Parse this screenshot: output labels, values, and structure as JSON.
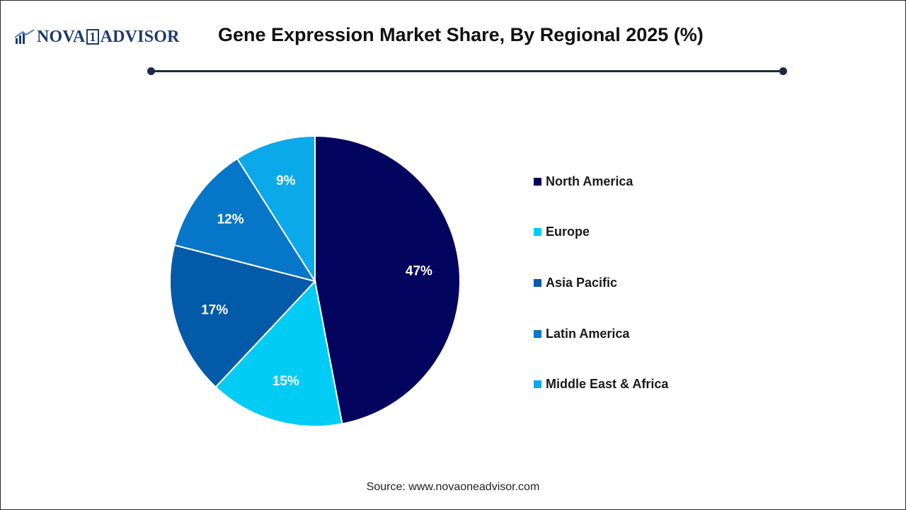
{
  "header": {
    "logo_word_1": "NOVA",
    "logo_num": "1",
    "logo_word_2": "ADVISOR",
    "title": "Gene Expression Market Share, By Regional 2025 (%)"
  },
  "colors": {
    "north_america": "#03045e",
    "europe": "#00ccf5",
    "asia_pacific": "#035aa8",
    "latin_america": "#0677c8",
    "middle_east_africa": "#0aa9ea",
    "brand": "#1f3a6e"
  },
  "chart_data": {
    "type": "pie",
    "title": "Gene Expression Market Share, By Regional 2025 (%)",
    "slices": [
      {
        "label": "North America",
        "value": 47,
        "display": "47%",
        "color": "#03045e"
      },
      {
        "label": "Europe",
        "value": 15,
        "display": "15%",
        "color": "#00ccf5"
      },
      {
        "label": "Asia Pacific",
        "value": 17,
        "display": "17%",
        "color": "#035aa8"
      },
      {
        "label": "Latin America",
        "value": 12,
        "display": "12%",
        "color": "#0677c8"
      },
      {
        "label": "Middle East & Africa",
        "value": 9,
        "display": "9%",
        "color": "#0aa9ea"
      }
    ],
    "legend": {
      "placement": "right"
    }
  },
  "footer": {
    "source": "Source: www.novaoneadvisor.com"
  }
}
